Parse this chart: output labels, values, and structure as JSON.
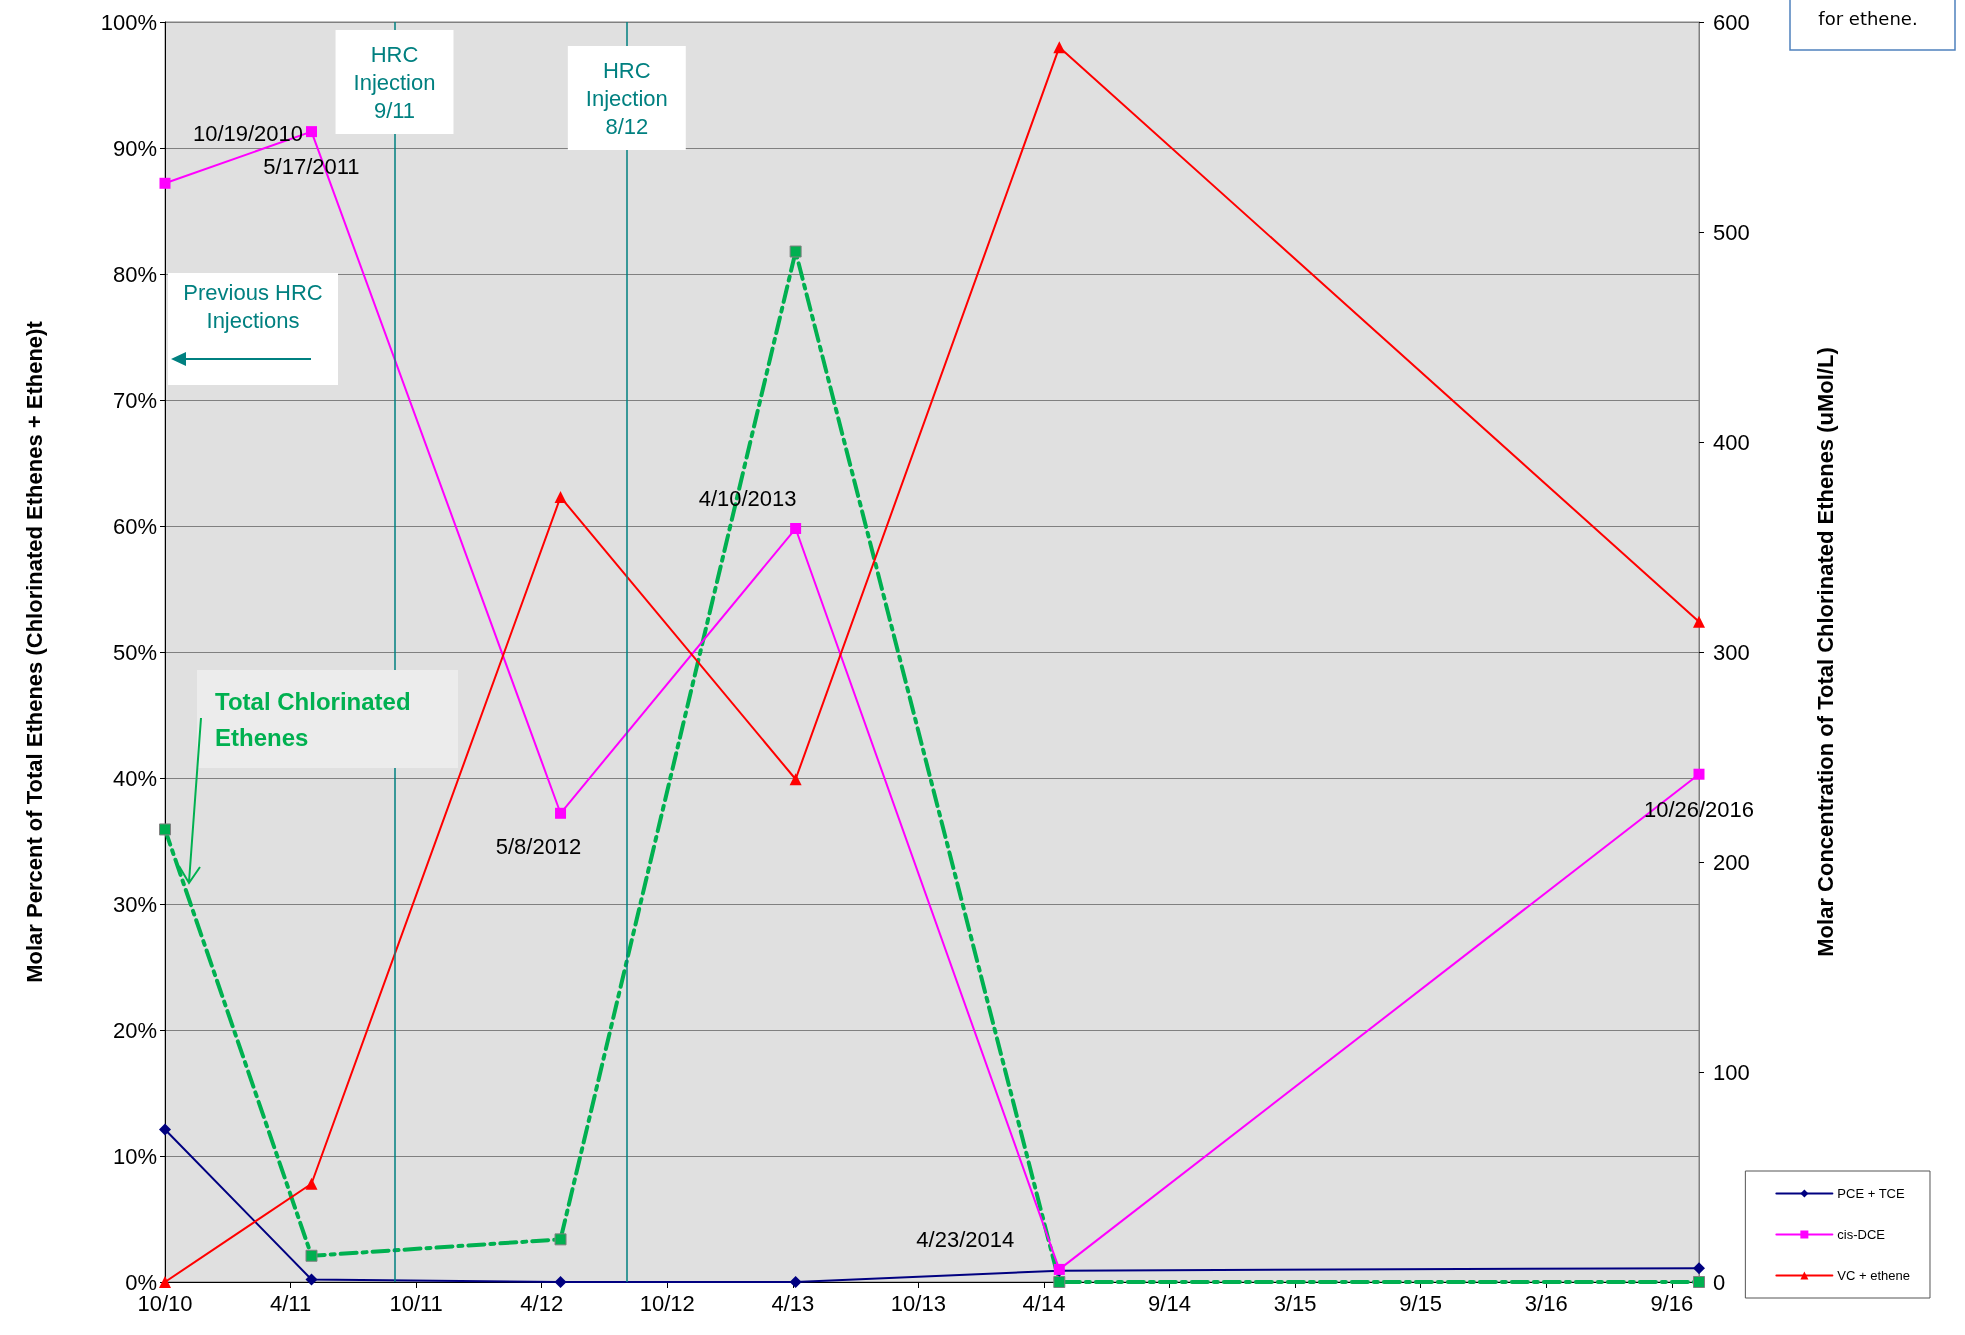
{
  "chart_data": {
    "type": "line",
    "ylabel": "Molar Percent of Total Ethenes (Chlorinated Ethenes + Ethene)t",
    "y2label": "Molar Concentration of Total Chlorinated Ethenes (uMol/L)",
    "x": [
      "2010-10-19",
      "2011-05-17",
      "2012-05-08",
      "2013-04-10",
      "2014-04-23",
      "2016-10-26"
    ],
    "series": [
      {
        "name": "PCE + TCE",
        "color": "#000080",
        "marker": "diamond",
        "line_style": "solid",
        "values": [
          12.1,
          0.2,
          0,
          0,
          0.9,
          1.1
        ]
      },
      {
        "name": "cis-DCE",
        "color": "#ff00ff",
        "marker": "square",
        "line_style": "solid",
        "values": [
          87.2,
          91.3,
          37.2,
          59.8,
          1.0,
          40.3
        ]
      },
      {
        "name": "VC + ethene",
        "color": "#ff0000",
        "marker": "triangle",
        "line_style": "solid",
        "values": [
          0,
          7.8,
          62.3,
          39.9,
          98.0,
          52.4
        ]
      },
      {
        "name": "Total Chlorinated Ethenes",
        "color": "#00b050",
        "marker": "square",
        "line_style": "dashed",
        "axis": "y2",
        "values": [
          215.5,
          12.5,
          20.3,
          490.7,
          0,
          0
        ]
      }
    ],
    "xlim": [
      "2010-10-19",
      "2016-10-26"
    ],
    "xticks": [
      {
        "value": "2010-10-19",
        "label": "10/10"
      },
      {
        "value": "2011-04-17",
        "label": "4/11"
      },
      {
        "value": "2011-10-14",
        "label": "10/11"
      },
      {
        "value": "2012-04-11",
        "label": "4/12"
      },
      {
        "value": "2012-10-08",
        "label": "10/12"
      },
      {
        "value": "2013-04-06",
        "label": "4/13"
      },
      {
        "value": "2013-10-03",
        "label": "10/13"
      },
      {
        "value": "2014-04-01",
        "label": "4/14"
      },
      {
        "value": "2014-09-28",
        "label": "9/14"
      },
      {
        "value": "2015-03-27",
        "label": "3/15"
      },
      {
        "value": "2015-09-23",
        "label": "9/15"
      },
      {
        "value": "2016-03-21",
        "label": "3/16"
      },
      {
        "value": "2016-09-17",
        "label": "9/16"
      }
    ],
    "ylim": [
      0,
      100
    ],
    "yticks": [
      {
        "value": 0,
        "label": "0%"
      },
      {
        "value": 10,
        "label": "10%"
      },
      {
        "value": 20,
        "label": "20%"
      },
      {
        "value": 30,
        "label": "30%"
      },
      {
        "value": 40,
        "label": "40%"
      },
      {
        "value": 50,
        "label": "50%"
      },
      {
        "value": 60,
        "label": "60%"
      },
      {
        "value": 70,
        "label": "70%"
      },
      {
        "value": 80,
        "label": "80%"
      },
      {
        "value": 90,
        "label": "90%"
      },
      {
        "value": 100,
        "label": "100%"
      }
    ],
    "y2lim": [
      0,
      600
    ],
    "y2ticks": [
      0,
      100,
      200,
      300,
      400,
      500,
      600
    ],
    "ref_lines": [
      {
        "axis": "x",
        "value": "2011-09-13",
        "label": "HRC\nInjection\n9/11",
        "color": "#008080"
      },
      {
        "axis": "x",
        "value": "2012-08-11",
        "label": "HRC\nInjection\n8/12",
        "color": "#008080"
      }
    ],
    "annotations": [
      {
        "text": "10/19/2010",
        "x": "2010-10-19",
        "y": 87.2
      },
      {
        "text": "5/17/2011",
        "x": "2011-05-17",
        "y": 91.3
      },
      {
        "text": "5/8/2012",
        "x": "2012-05-08",
        "y": 37.2
      },
      {
        "text": "4/10/2013",
        "x": "2013-04-10",
        "y": 59.8
      },
      {
        "text": "4/23/2014",
        "x": "2014-04-23",
        "y": 1.0
      },
      {
        "text": "10/26/2016",
        "x": "2016-10-26",
        "y": 40.3
      },
      "Previous HRC Injections",
      "for ethene."
    ],
    "grid": "y",
    "legend": "bottom right"
  }
}
